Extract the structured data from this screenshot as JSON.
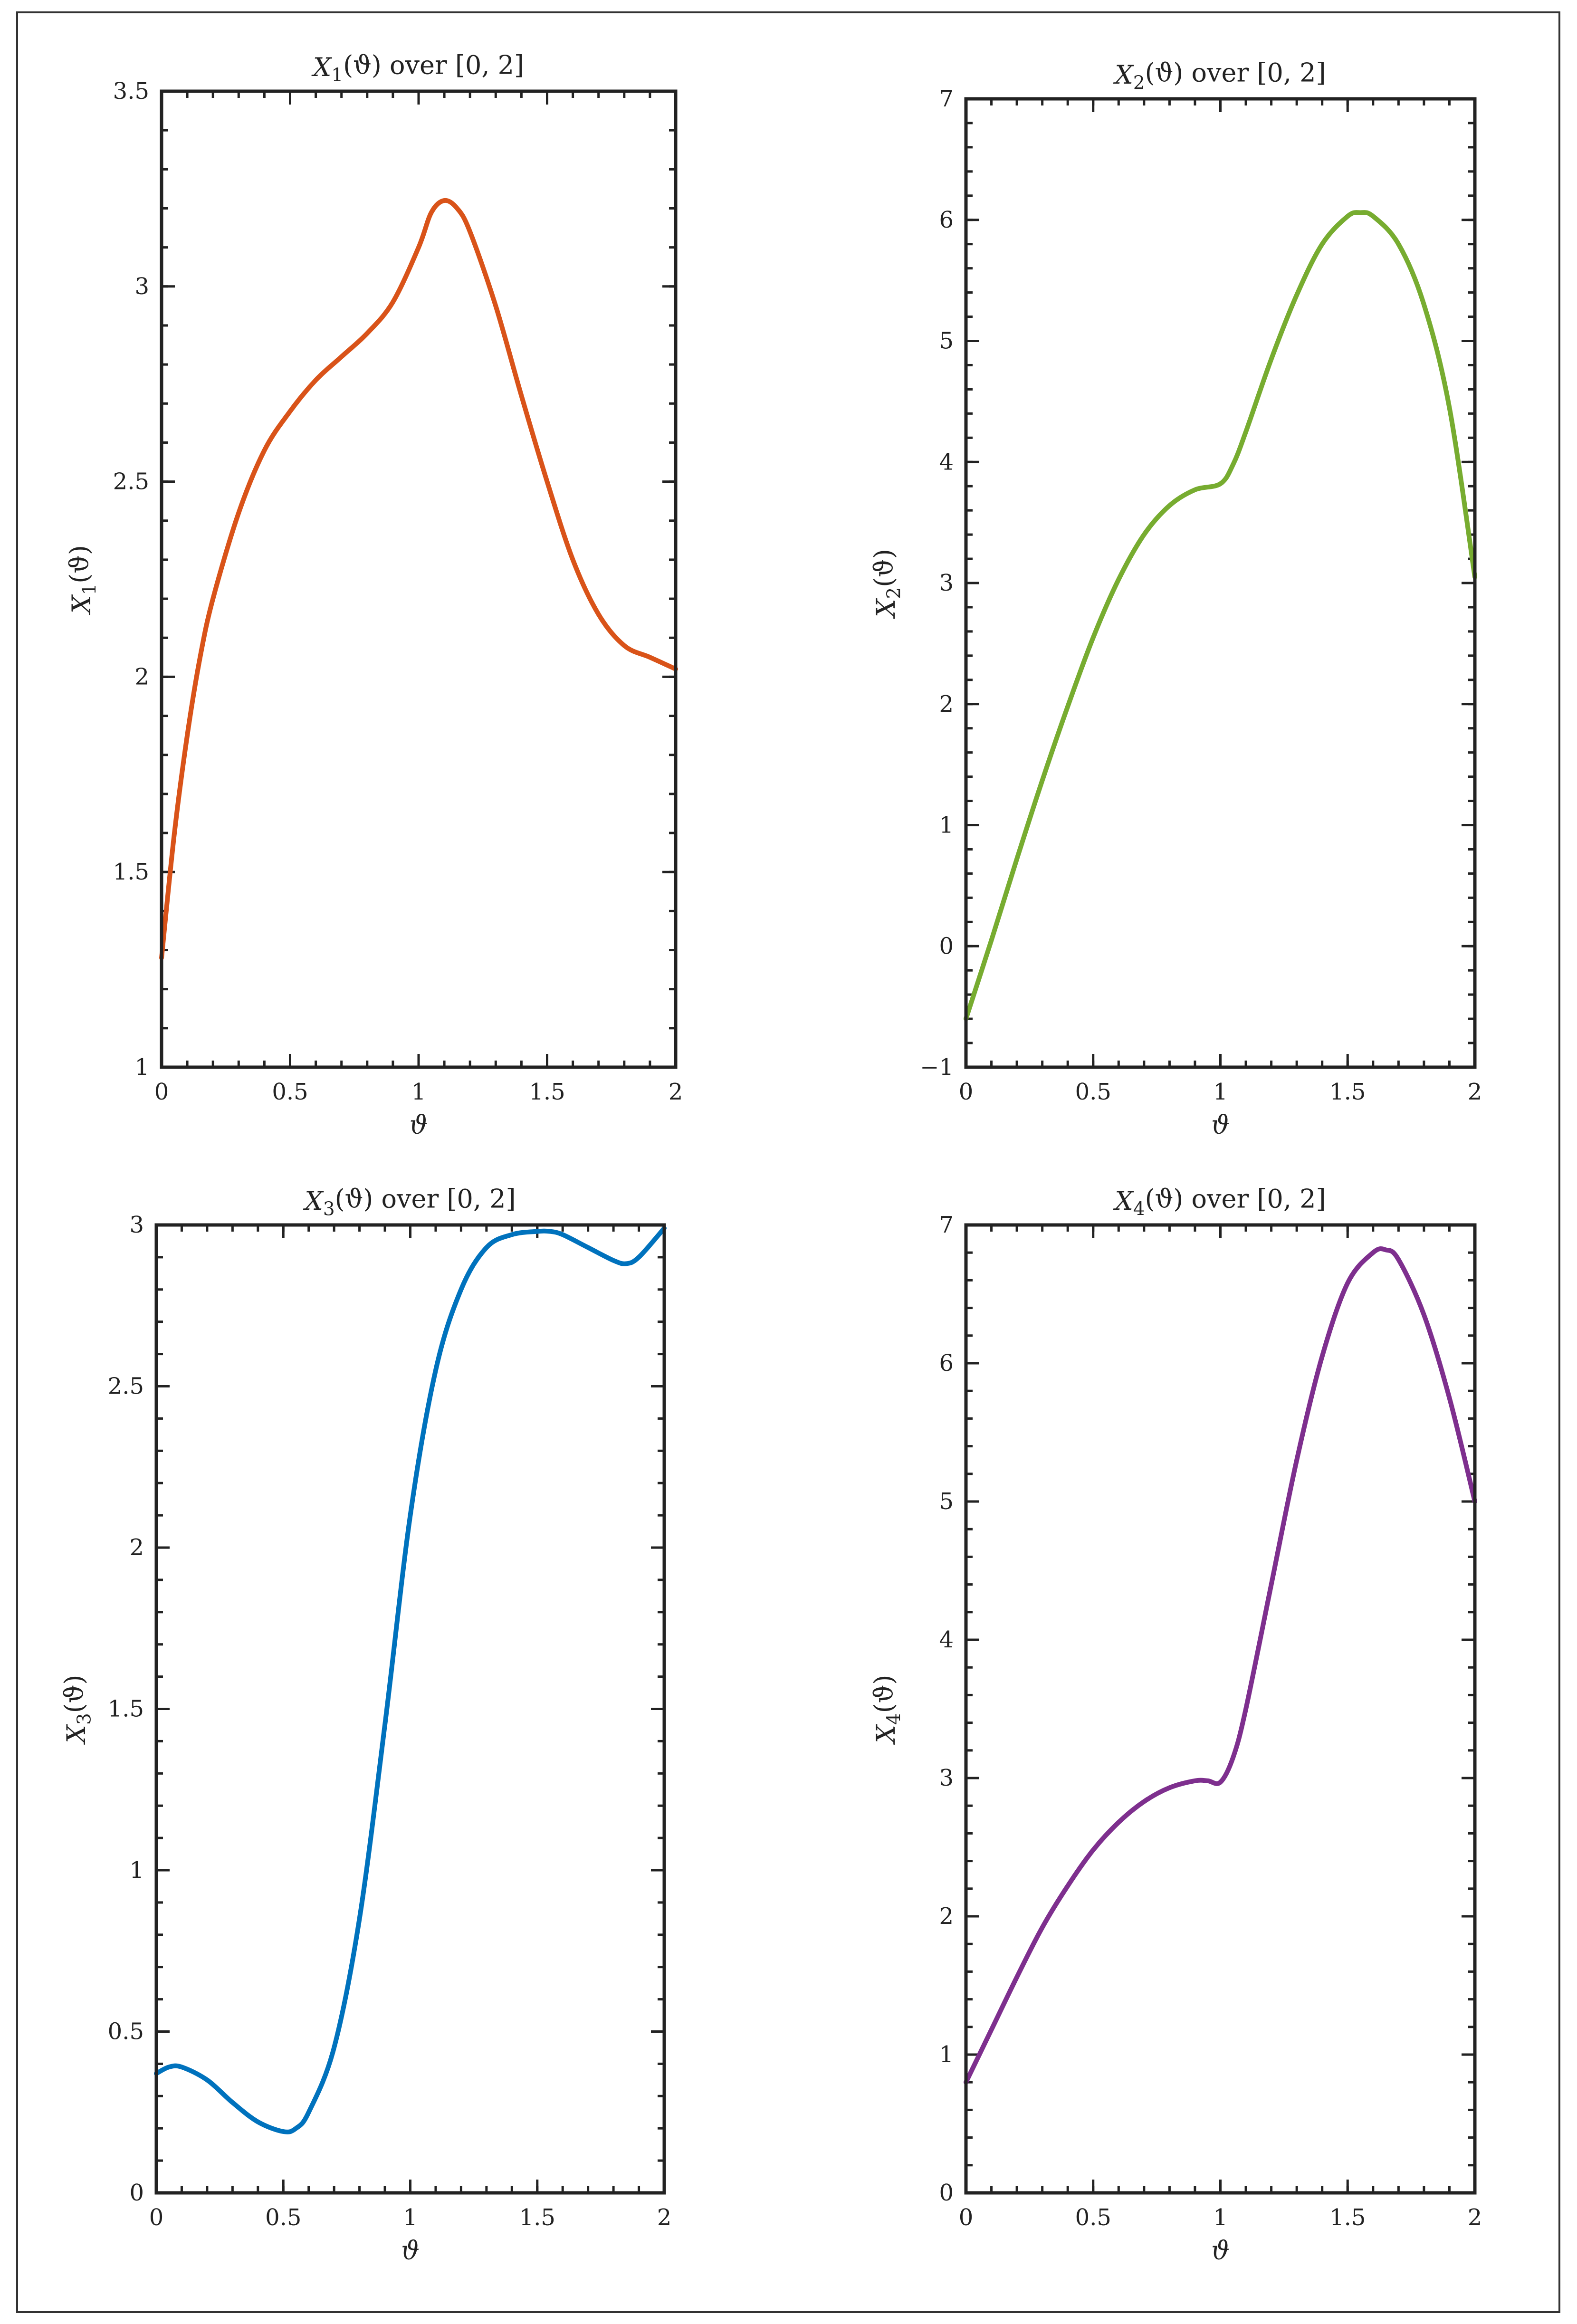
{
  "chart_data": [
    {
      "type": "line",
      "title": "X₁(ϑ) over [0, 2]",
      "xlabel": "ϑ",
      "ylabel": "X₁(ϑ)",
      "xlim": [
        0,
        2
      ],
      "ylim": [
        1,
        3.5
      ],
      "xticks": [
        0,
        0.5,
        1,
        1.5,
        2
      ],
      "xtick_labels": [
        "0",
        "0.5",
        "1",
        "1.5",
        "2"
      ],
      "yticks": [
        1,
        1.5,
        2,
        2.5,
        3,
        3.5
      ],
      "ytick_labels": [
        "1",
        "1.5",
        "2",
        "2.5",
        "3",
        "3.5"
      ],
      "grid": false,
      "color": "#D95319",
      "series": [
        {
          "x": [
            0,
            0.05,
            0.1,
            0.15,
            0.2,
            0.3,
            0.4,
            0.5,
            0.6,
            0.7,
            0.8,
            0.9,
            1.0,
            1.05,
            1.1,
            1.15,
            1.2,
            1.3,
            1.4,
            1.5,
            1.6,
            1.7,
            1.8,
            1.9,
            2.0
          ],
          "y": [
            1.28,
            1.6,
            1.85,
            2.05,
            2.2,
            2.42,
            2.58,
            2.68,
            2.76,
            2.82,
            2.88,
            2.96,
            3.1,
            3.19,
            3.22,
            3.2,
            3.14,
            2.95,
            2.72,
            2.5,
            2.3,
            2.16,
            2.08,
            2.05,
            2.02
          ]
        }
      ]
    },
    {
      "type": "line",
      "title": "X₂(ϑ) over [0, 2]",
      "xlabel": "ϑ",
      "ylabel": "X₂(ϑ)",
      "xlim": [
        0,
        2
      ],
      "ylim": [
        -1,
        7
      ],
      "xticks": [
        0,
        0.5,
        1,
        1.5,
        2
      ],
      "xtick_labels": [
        "0",
        "0.5",
        "1",
        "1.5",
        "2"
      ],
      "yticks": [
        -1,
        0,
        1,
        2,
        3,
        4,
        5,
        6,
        7
      ],
      "ytick_labels": [
        "−1",
        "0",
        "1",
        "2",
        "3",
        "4",
        "5",
        "6",
        "7"
      ],
      "grid": false,
      "color": "#77AC30",
      "series": [
        {
          "x": [
            0,
            0.1,
            0.2,
            0.3,
            0.4,
            0.5,
            0.6,
            0.7,
            0.8,
            0.9,
            1.0,
            1.05,
            1.1,
            1.2,
            1.3,
            1.4,
            1.5,
            1.55,
            1.6,
            1.7,
            1.8,
            1.9,
            2.0
          ],
          "y": [
            -0.6,
            0.05,
            0.72,
            1.37,
            1.98,
            2.55,
            3.03,
            3.4,
            3.64,
            3.77,
            3.82,
            3.98,
            4.25,
            4.85,
            5.38,
            5.8,
            6.03,
            6.06,
            6.03,
            5.8,
            5.3,
            4.45,
            3.05
          ]
        }
      ]
    },
    {
      "type": "line",
      "title": "X₃(ϑ) over [0, 2]",
      "xlabel": "ϑ",
      "ylabel": "X₃(ϑ)",
      "xlim": [
        0,
        2
      ],
      "ylim": [
        0,
        3
      ],
      "xticks": [
        0,
        0.5,
        1,
        1.5,
        2
      ],
      "xtick_labels": [
        "0",
        "0.5",
        "1",
        "1.5",
        "2"
      ],
      "yticks": [
        0,
        0.5,
        1,
        1.5,
        2,
        2.5,
        3
      ],
      "ytick_labels": [
        "0",
        "0.5",
        "1",
        "1.5",
        "2",
        "2.5",
        "3"
      ],
      "grid": false,
      "color": "#0072BD",
      "series": [
        {
          "x": [
            0,
            0.05,
            0.1,
            0.2,
            0.3,
            0.4,
            0.5,
            0.55,
            0.6,
            0.7,
            0.8,
            0.9,
            1.0,
            1.1,
            1.2,
            1.3,
            1.4,
            1.5,
            1.55,
            1.6,
            1.7,
            1.8,
            1.85,
            1.9,
            2.0
          ],
          "y": [
            0.37,
            0.39,
            0.39,
            0.35,
            0.28,
            0.22,
            0.19,
            0.2,
            0.25,
            0.45,
            0.85,
            1.45,
            2.1,
            2.55,
            2.8,
            2.93,
            2.97,
            2.98,
            2.98,
            2.97,
            2.93,
            2.89,
            2.88,
            2.9,
            2.99
          ]
        }
      ]
    },
    {
      "type": "line",
      "title": "X₄(ϑ) over [0, 2]",
      "xlabel": "ϑ",
      "ylabel": "X₄(ϑ)",
      "xlim": [
        0,
        2
      ],
      "ylim": [
        0,
        7
      ],
      "xticks": [
        0,
        0.5,
        1,
        1.5,
        2
      ],
      "xtick_labels": [
        "0",
        "0.5",
        "1",
        "1.5",
        "2"
      ],
      "yticks": [
        0,
        1,
        2,
        3,
        4,
        5,
        6,
        7
      ],
      "ytick_labels": [
        "0",
        "1",
        "2",
        "3",
        "4",
        "5",
        "6",
        "7"
      ],
      "grid": false,
      "color": "#7E2F8E",
      "series": [
        {
          "x": [
            0,
            0.1,
            0.2,
            0.3,
            0.4,
            0.5,
            0.6,
            0.7,
            0.8,
            0.9,
            0.95,
            1.0,
            1.05,
            1.1,
            1.2,
            1.3,
            1.4,
            1.5,
            1.6,
            1.65,
            1.7,
            1.8,
            1.9,
            2.0
          ],
          "y": [
            0.8,
            1.18,
            1.56,
            1.92,
            2.22,
            2.48,
            2.68,
            2.83,
            2.93,
            2.98,
            2.98,
            2.97,
            3.15,
            3.5,
            4.4,
            5.3,
            6.05,
            6.58,
            6.8,
            6.82,
            6.75,
            6.35,
            5.75,
            5.0
          ]
        }
      ]
    }
  ]
}
